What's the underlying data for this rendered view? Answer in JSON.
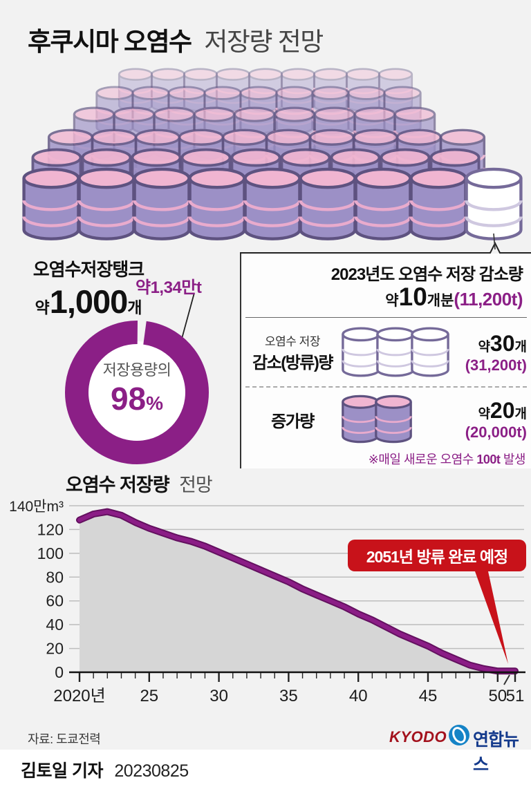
{
  "title": {
    "main": "후쿠시마 오염수",
    "sub": "저장량 전망"
  },
  "tank_summary": {
    "line1": "오염수저장탱크",
    "approx": "약",
    "count": "1,000",
    "unit": "개",
    "capacity_label": "약1,34만t"
  },
  "donut": {
    "center_label": "저장용량의",
    "percent": "98",
    "percent_sign": "%",
    "value_pct": 98,
    "accent": "#8b1f86"
  },
  "panel": {
    "title": "2023년도 오염수 저장 감소량",
    "amount": {
      "approx": "약",
      "value": "10",
      "unit": "개분",
      "tons": "(11,200t)"
    },
    "row_decrease": {
      "label_top": "오염수 저장",
      "label_main": "감소(방류)량",
      "approx": "약",
      "value": "30",
      "unit": "개",
      "tons": "(31,200t)",
      "barrels": 3,
      "style": "empty"
    },
    "row_increase": {
      "label_main": "증가량",
      "approx": "약",
      "value": "20",
      "unit": "개",
      "tons": "(20,000t)",
      "barrels": 2,
      "style": "filled"
    },
    "note": {
      "prefix": "※매일 새로운 오염수 ",
      "strong": "100t",
      "suffix": " 발생"
    }
  },
  "chart_header": {
    "main": "오염수 저장량",
    "sub": "전망"
  },
  "chart_data": {
    "type": "area",
    "title": "오염수 저장량 전망",
    "x": [
      2020,
      2021,
      2022,
      2023,
      2024,
      2025,
      2026,
      2027,
      2028,
      2029,
      2030,
      2031,
      2032,
      2033,
      2034,
      2035,
      2036,
      2037,
      2038,
      2039,
      2040,
      2041,
      2042,
      2043,
      2044,
      2045,
      2046,
      2047,
      2048,
      2049,
      2050,
      2051
    ],
    "values": [
      128,
      133,
      135,
      132,
      126,
      121,
      117,
      113,
      110,
      106,
      101,
      96,
      91,
      86,
      81,
      76,
      70,
      65,
      60,
      55,
      49,
      44,
      38,
      32,
      27,
      22,
      16,
      11,
      6,
      3,
      1,
      1
    ],
    "ylabel_top": "140만m³",
    "yticks": [
      0,
      20,
      40,
      60,
      80,
      100,
      120
    ],
    "ylim": [
      0,
      140
    ],
    "xtick_years": [
      2020,
      2025,
      2030,
      2035,
      2040,
      2045,
      2050,
      2051
    ],
    "xtick_labels": [
      "2020년",
      "25",
      "30",
      "35",
      "40",
      "45",
      "50",
      "51"
    ],
    "axis_break_between": [
      2050,
      2051
    ],
    "grid": true,
    "annotation": "2051년 방류 완료 예정",
    "line_color": "#8b1d86",
    "line_edge_color": "#63105f",
    "fill_color": "#d6d6d6",
    "annotation_color": "#c8121a"
  },
  "illustration": {
    "barrel_total_label": "contaminated-water tanks stack",
    "rows": [
      {
        "count": 9,
        "scale": 0.88,
        "y": 98,
        "start": 196,
        "gap": 47,
        "opacity": 0.38
      },
      {
        "count": 9,
        "scale": 0.97,
        "y": 124,
        "start": 166,
        "gap": 52,
        "opacity": 0.52
      },
      {
        "count": 9,
        "scale": 1.06,
        "y": 154,
        "start": 136,
        "gap": 58,
        "opacity": 0.66
      },
      {
        "count": 10,
        "scale": 1.16,
        "y": 186,
        "start": 102,
        "gap": 63,
        "opacity": 0.8
      },
      {
        "count": 9,
        "scale": 1.28,
        "y": 214,
        "start": 82,
        "gap": 72,
        "opacity": 0.92
      },
      {
        "count": 9,
        "scale": 1.46,
        "y": 242,
        "start": 74,
        "gap": 80,
        "opacity": 1,
        "white_last": true
      }
    ],
    "colors": {
      "body": "#9c90c6",
      "lid": "#f0b5d1",
      "band": "#e9abcd",
      "outline": "#5e5280",
      "empty_body": "#ffffff",
      "empty_band": "#cfc8e0",
      "empty_outline": "#756a99"
    }
  },
  "footer": {
    "source": "자료: 도쿄전력",
    "kyodo": "KYODO",
    "yonhap": "연합뉴스",
    "credit_name": "김토일 기자",
    "credit_date": "20230825"
  }
}
